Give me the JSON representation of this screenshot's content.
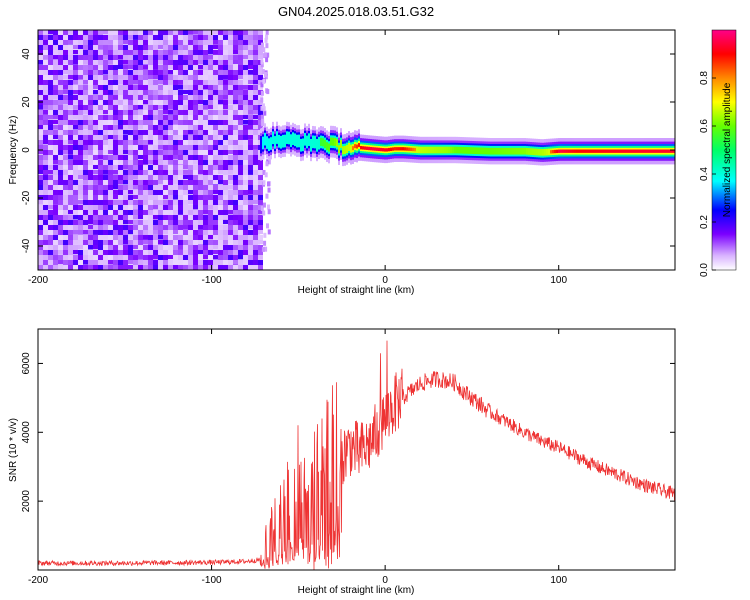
{
  "title": "GN04.2025.018.03.51.G32",
  "chart_data": [
    {
      "type": "heatmap",
      "xlabel": "Height of straight line (km)",
      "ylabel": "Frequency (Hz)",
      "xlim": [
        -200,
        167
      ],
      "ylim": [
        -50,
        50
      ],
      "x_ticks": [
        -200,
        -100,
        0,
        100
      ],
      "y_ticks": [
        -40,
        -20,
        0,
        20,
        40
      ],
      "noise_region_x": [
        -200,
        -72
      ],
      "signal_track": {
        "x": [
          -72,
          -65,
          -55,
          -45,
          -38,
          -30,
          -22,
          -15,
          -8,
          0,
          5,
          10,
          20,
          40,
          60,
          80,
          90,
          100,
          110,
          130,
          150,
          167
        ],
        "frequency_hz": [
          3,
          4,
          4,
          3,
          3,
          2,
          1,
          1,
          0.5,
          0,
          0.5,
          0.5,
          0,
          0,
          -0.5,
          -0.5,
          -1,
          -0.5,
          -0.5,
          -0.5,
          -0.5,
          -0.5
        ],
        "peak_amplitude": [
          0.35,
          0.45,
          0.5,
          0.5,
          0.55,
          0.6,
          0.75,
          0.9,
          0.95,
          0.92,
          0.88,
          0.9,
          0.75,
          0.6,
          0.6,
          0.62,
          0.7,
          0.95,
          0.9,
          0.92,
          0.93,
          0.93
        ]
      },
      "colorbar": {
        "label": "Normalized spectral amplitude",
        "range": [
          0,
          1
        ],
        "ticks": [
          "0.0",
          "0.2",
          "0.4",
          "0.6",
          "0.8"
        ]
      }
    },
    {
      "type": "line",
      "xlabel": "Height of straight line (km)",
      "ylabel": "SNR (10 * v/v)",
      "xlim": [
        -200,
        167
      ],
      "ylim": [
        0,
        7000
      ],
      "x_ticks": [
        -200,
        -100,
        0,
        100
      ],
      "y_ticks": [
        2000,
        4000,
        6000
      ],
      "color": "#ee3333",
      "series": [
        {
          "x": [
            -200,
            -150,
            -100,
            -80,
            -72,
            -68,
            -62,
            -55,
            -50,
            -45,
            -40,
            -35,
            -30,
            -25,
            -20,
            -15,
            -10,
            -5,
            0,
            5,
            10,
            15,
            20,
            25,
            30,
            35,
            40,
            45,
            50,
            60,
            70,
            80,
            90,
            100,
            110,
            120,
            130,
            140,
            150,
            160,
            167
          ],
          "y": [
            200,
            200,
            220,
            250,
            300,
            800,
            1300,
            1900,
            2400,
            2600,
            2200,
            2500,
            3000,
            3300,
            3600,
            3400,
            3600,
            4000,
            4400,
            4800,
            5000,
            5200,
            5400,
            5500,
            5550,
            5500,
            5450,
            5200,
            5000,
            4600,
            4300,
            4000,
            3750,
            3550,
            3300,
            3050,
            2850,
            2650,
            2450,
            2300,
            2200
          ]
        }
      ]
    }
  ]
}
